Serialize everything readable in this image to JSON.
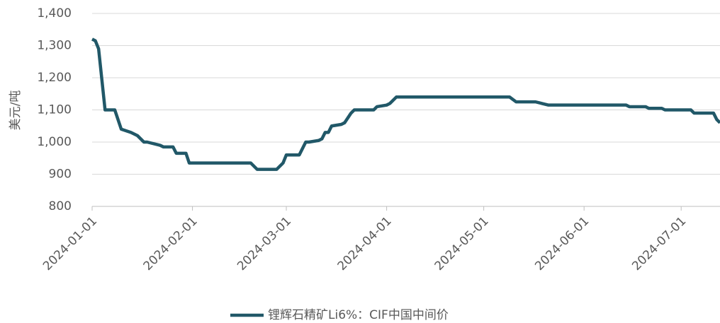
{
  "chart_data": {
    "type": "line",
    "y_label": "美元/吨",
    "x": [
      "2024-01-01",
      "2024-01-02",
      "2024-01-03",
      "2024-01-05",
      "2024-01-08",
      "2024-01-10",
      "2024-01-13",
      "2024-01-15",
      "2024-01-17",
      "2024-01-18",
      "2024-01-22",
      "2024-01-23",
      "2024-01-26",
      "2024-01-27",
      "2024-01-30",
      "2024-01-31",
      "2024-02-19",
      "2024-02-21",
      "2024-02-27",
      "2024-02-29",
      "2024-03-01",
      "2024-03-05",
      "2024-03-06",
      "2024-03-07",
      "2024-03-08",
      "2024-03-11",
      "2024-03-12",
      "2024-03-13",
      "2024-03-14",
      "2024-03-15",
      "2024-03-18",
      "2024-03-19",
      "2024-03-21",
      "2024-03-22",
      "2024-03-28",
      "2024-03-29",
      "2024-04-01",
      "2024-04-02",
      "2024-04-04",
      "2024-05-09",
      "2024-05-11",
      "2024-05-17",
      "2024-05-19",
      "2024-05-21",
      "2024-06-14",
      "2024-06-15",
      "2024-06-20",
      "2024-06-21",
      "2024-06-25",
      "2024-06-26",
      "2024-07-04",
      "2024-07-05",
      "2024-07-11",
      "2024-07-12",
      "2024-07-13"
    ],
    "series": [
      {
        "name": "锂辉石精矿Li6%：CIF中国中间价",
        "color": "#215868",
        "values": [
          1320,
          1315,
          1290,
          1100,
          1100,
          1040,
          1030,
          1020,
          1000,
          1000,
          990,
          985,
          985,
          965,
          965,
          935,
          935,
          915,
          915,
          935,
          960,
          960,
          980,
          1000,
          1000,
          1005,
          1010,
          1030,
          1030,
          1050,
          1055,
          1060,
          1090,
          1100,
          1100,
          1110,
          1115,
          1120,
          1140,
          1140,
          1125,
          1125,
          1120,
          1115,
          1115,
          1110,
          1110,
          1105,
          1105,
          1100,
          1100,
          1090,
          1090,
          1070,
          1060
        ]
      }
    ],
    "xlim": [
      "2024-01-01",
      "2024-07-13"
    ],
    "xticks": [
      "2024-01-01",
      "2024-02-01",
      "2024-03-01",
      "2024-04-01",
      "2024-05-01",
      "2024-06-01",
      "2024-07-01"
    ],
    "ylim": [
      800,
      1400
    ],
    "yticks": [
      800,
      900,
      {
        "value": 1000,
        "label": "1,000"
      },
      {
        "value": 1100,
        "label": "1,100"
      },
      {
        "value": 1200,
        "label": "1,200"
      },
      {
        "value": 1300,
        "label": "1,300"
      },
      {
        "value": 1400,
        "label": "1,400"
      }
    ],
    "grid": true,
    "legend": "bottom"
  }
}
